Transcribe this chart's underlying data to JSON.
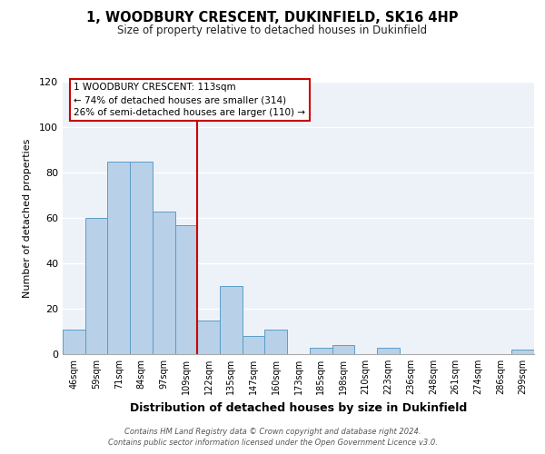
{
  "title": "1, WOODBURY CRESCENT, DUKINFIELD, SK16 4HP",
  "subtitle": "Size of property relative to detached houses in Dukinfield",
  "xlabel": "Distribution of detached houses by size in Dukinfield",
  "ylabel": "Number of detached properties",
  "bar_labels": [
    "46sqm",
    "59sqm",
    "71sqm",
    "84sqm",
    "97sqm",
    "109sqm",
    "122sqm",
    "135sqm",
    "147sqm",
    "160sqm",
    "173sqm",
    "185sqm",
    "198sqm",
    "210sqm",
    "223sqm",
    "236sqm",
    "248sqm",
    "261sqm",
    "274sqm",
    "286sqm",
    "299sqm"
  ],
  "bar_values": [
    11,
    60,
    85,
    85,
    63,
    57,
    15,
    30,
    8,
    11,
    0,
    3,
    4,
    0,
    3,
    0,
    0,
    0,
    0,
    0,
    2
  ],
  "bar_color": "#b8d0e8",
  "bar_edge_color": "#5a9ec8",
  "vline_x": 5.5,
  "vline_color": "#cc0000",
  "annotation_text_line1": "1 WOODBURY CRESCENT: 113sqm",
  "annotation_text_line2": "← 74% of detached houses are smaller (314)",
  "annotation_text_line3": "26% of semi-detached houses are larger (110) →",
  "ylim": [
    0,
    120
  ],
  "yticks": [
    0,
    20,
    40,
    60,
    80,
    100,
    120
  ],
  "bg_color": "#edf2f8",
  "footer_line1": "Contains HM Land Registry data © Crown copyright and database right 2024.",
  "footer_line2": "Contains public sector information licensed under the Open Government Licence v3.0."
}
